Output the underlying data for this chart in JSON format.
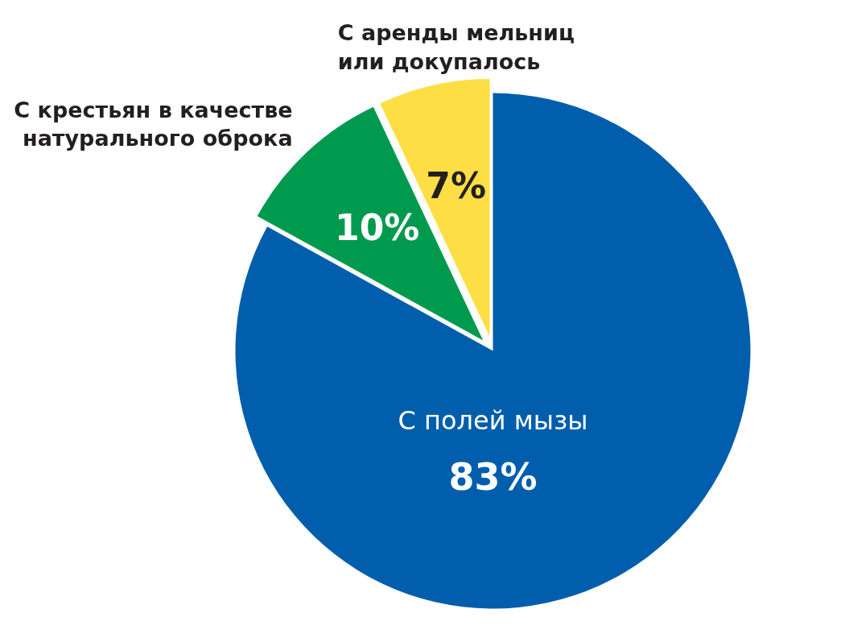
{
  "chart_data": {
    "type": "pie",
    "categories": [
      "С полей мызы",
      "С крестьян в качестве\nнатурального оброка",
      "С аренды мельниц\nили докупалось"
    ],
    "values": [
      83,
      10,
      7
    ],
    "colors": [
      "#005eac",
      "#009a4e",
      "#fddf45"
    ],
    "value_labels": [
      "83%",
      "10%",
      "7%"
    ]
  }
}
